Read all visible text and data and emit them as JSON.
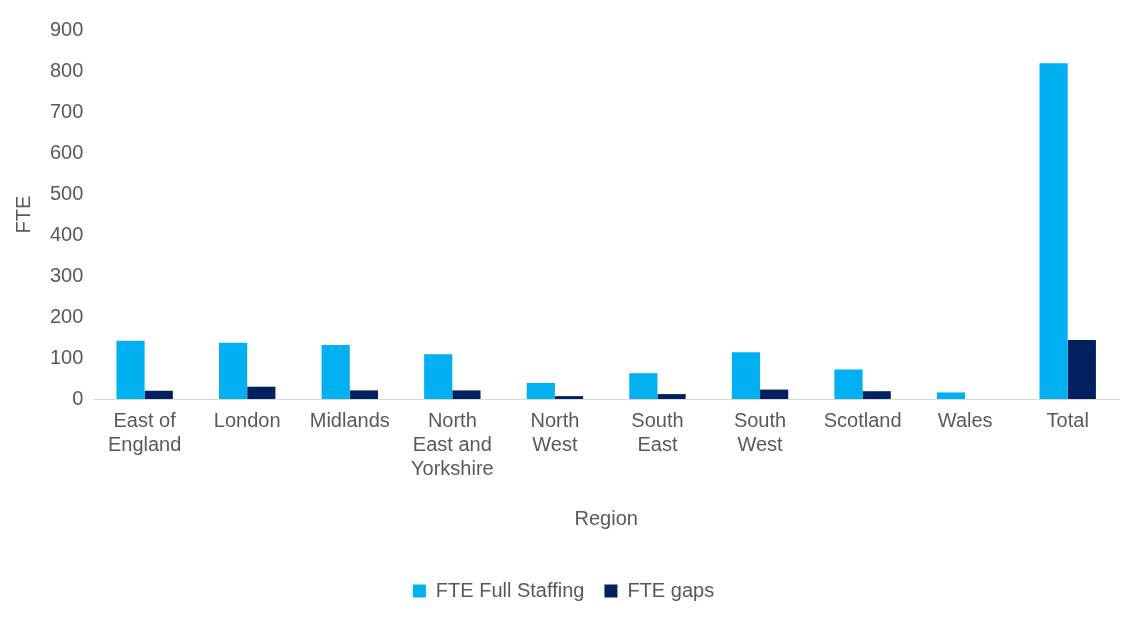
{
  "chart_data": {
    "type": "bar",
    "xlabel": "Region",
    "ylabel": "FTE",
    "categories": [
      "East of England",
      "London",
      "Midlands",
      "North East and Yorkshire",
      "North West",
      "South East",
      "South West",
      "Scotland",
      "Wales",
      "Total"
    ],
    "series": [
      {
        "name": "FTE Full Staffing",
        "color": "#00b0f0",
        "values": [
          142,
          137,
          132,
          109,
          39,
          63,
          114,
          72,
          16,
          819
        ]
      },
      {
        "name": "FTE gaps",
        "color": "#002060",
        "values": [
          20,
          30,
          21,
          21,
          7,
          12,
          23,
          19,
          0,
          144
        ]
      }
    ],
    "ylim": [
      0,
      900
    ],
    "yticks": [
      0,
      100,
      200,
      300,
      400,
      500,
      600,
      700,
      800,
      900
    ],
    "grid": false,
    "legend": "bottom"
  }
}
